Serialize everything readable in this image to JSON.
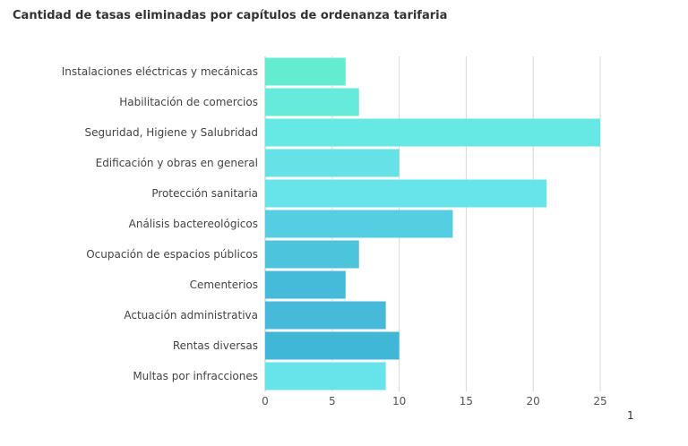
{
  "chart_data": {
    "type": "bar",
    "orientation": "horizontal",
    "title": "Cantidad de tasas eliminadas por capítulos de ordenanza tarifaria",
    "categories": [
      "Instalaciones eléctricas y mecánicas",
      "Habilitación de comercios",
      "Seguridad, Higiene y Salubridad",
      "Edificación y obras en general",
      "Protección sanitaria",
      "Análisis bactereológicos",
      "Ocupación de espacios públicos",
      "Cementerios",
      "Actuación administrativa",
      "Rentas diversas",
      "Multas por infracciones"
    ],
    "values": [
      6,
      7,
      25,
      10,
      21,
      14,
      7,
      6,
      9,
      10,
      9
    ],
    "colors": [
      "#64ecd0",
      "#66ebdb",
      "#66e8e5",
      "#66e2e6",
      "#66e4ea",
      "#55cde2",
      "#4cc4db",
      "#46bbd9",
      "#46bad8",
      "#41b7d7",
      "#66e4ea"
    ],
    "xlim": [
      0,
      25
    ],
    "xticks": [
      "0",
      "5",
      "10",
      "15",
      "20",
      "25"
    ],
    "grid": true,
    "legend": "none",
    "xlabel": "",
    "ylabel": ""
  },
  "page_number": "1"
}
